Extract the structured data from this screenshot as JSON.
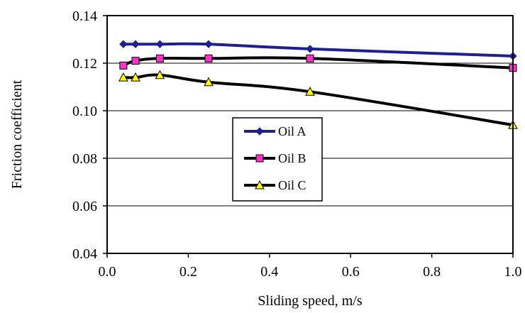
{
  "chart_data": {
    "type": "line",
    "xlabel": "Sliding speed, m/s",
    "ylabel": "Friction coefficient",
    "xlim": [
      0.0,
      1.0
    ],
    "ylim": [
      0.04,
      0.14
    ],
    "x_ticks": [
      "0.0",
      "0.2",
      "0.4",
      "0.6",
      "0.8",
      "1.0"
    ],
    "y_ticks": [
      "0.04",
      "0.06",
      "0.08",
      "0.10",
      "0.12",
      "0.14"
    ],
    "grid": "horizontal",
    "legend_position": "center",
    "series": [
      {
        "name": "Oil A",
        "marker": "diamond",
        "color": "#1f1f8f",
        "x": [
          0.04,
          0.07,
          0.13,
          0.25,
          0.5,
          1.0
        ],
        "y": [
          0.128,
          0.128,
          0.128,
          0.128,
          0.126,
          0.123
        ]
      },
      {
        "name": "Oil B",
        "marker": "square",
        "color": "#000000",
        "marker_color": "#ff33cc",
        "x": [
          0.04,
          0.07,
          0.13,
          0.25,
          0.5,
          1.0
        ],
        "y": [
          0.119,
          0.121,
          0.122,
          0.122,
          0.122,
          0.118
        ]
      },
      {
        "name": "Oil C",
        "marker": "triangle",
        "color": "#000000",
        "marker_color": "#ffff00",
        "x": [
          0.04,
          0.07,
          0.13,
          0.25,
          0.5,
          1.0
        ],
        "y": [
          0.114,
          0.114,
          0.115,
          0.112,
          0.108,
          0.094
        ]
      }
    ]
  }
}
